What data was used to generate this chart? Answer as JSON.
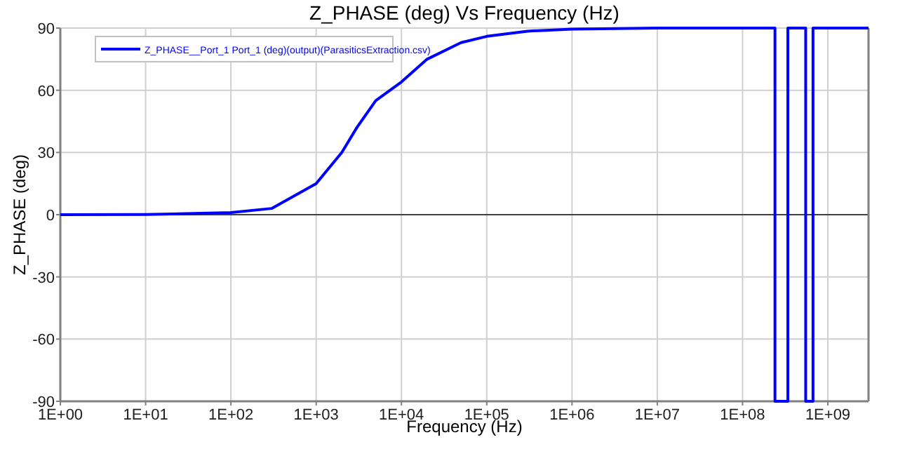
{
  "chart_data": {
    "type": "line",
    "title": "Z_PHASE (deg) Vs Frequency (Hz)",
    "xlabel": "Frequency (Hz)",
    "ylabel": "Z_PHASE (deg)",
    "log": "x",
    "grid": true,
    "legend": "top left",
    "marker": "none",
    "line_style": "solid",
    "xlim": [
      1,
      3000000000
    ],
    "ylim": [
      -90,
      90
    ],
    "xticks": [
      {
        "value": 1,
        "label": "1E+00"
      },
      {
        "value": 10,
        "label": "1E+01"
      },
      {
        "value": 100,
        "label": "1E+02"
      },
      {
        "value": 1000,
        "label": "1E+03"
      },
      {
        "value": 10000,
        "label": "1E+04"
      },
      {
        "value": 100000,
        "label": "1E+05"
      },
      {
        "value": 1000000,
        "label": "1E+06"
      },
      {
        "value": 10000000,
        "label": "1E+07"
      },
      {
        "value": 100000000,
        "label": "1E+08"
      },
      {
        "value": 1000000000,
        "label": "1E+09"
      }
    ],
    "yticks": [
      -90,
      -60,
      -30,
      0,
      30,
      60,
      90
    ],
    "ref_lines": [
      {
        "axis": "y",
        "value": 0,
        "color": "#404040"
      }
    ],
    "series": [
      {
        "name": "Z_PHASE__Port_1 Port_1 (deg)(output)(ParasiticsExtraction.csv)",
        "color": "#0000ff",
        "x": [
          1,
          10,
          100,
          300,
          1000,
          2000,
          3000,
          5000,
          10000,
          20000,
          50000,
          100000,
          300000,
          1000000,
          10000000,
          240000000,
          240000000,
          340000000,
          340000000,
          550000000,
          550000000,
          670000000,
          670000000,
          3000000000
        ],
        "values": [
          0,
          0.1,
          1,
          3,
          15,
          30,
          42,
          55,
          64,
          75,
          83,
          86,
          88.5,
          89.5,
          90,
          90,
          -90,
          -90,
          90,
          90,
          -90,
          -90,
          90,
          90
        ]
      }
    ]
  }
}
